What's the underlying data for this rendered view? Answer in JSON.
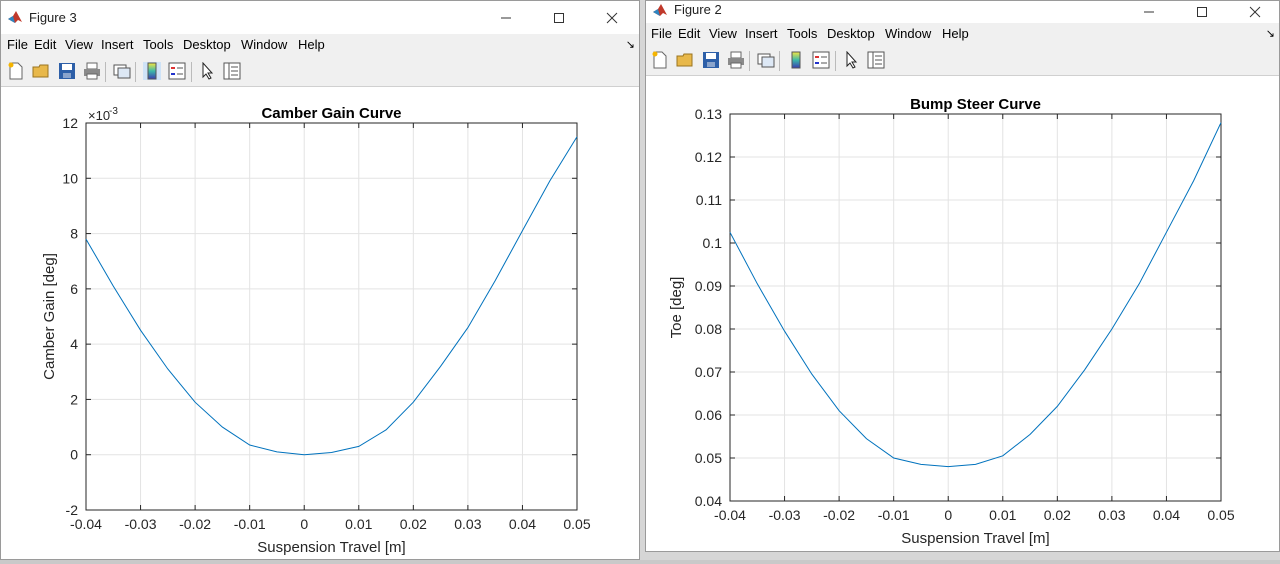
{
  "windows": [
    {
      "id": "fig3",
      "title": "Figure 3",
      "menu": [
        "File",
        "Edit",
        "View",
        "Insert",
        "Tools",
        "Desktop",
        "Window",
        "Help"
      ],
      "toolbar_icons": [
        "new-figure-icon",
        "open-file-icon",
        "save-icon",
        "print-icon",
        "link-plot-icon",
        "insert-colorbar-icon",
        "insert-legend-icon",
        "edit-plot-pointer-icon",
        "property-inspector-icon"
      ],
      "chart_data": {
        "type": "line",
        "title": "Camber Gain Curve",
        "xlabel": "Suspension Travel [m]",
        "ylabel": "Camber Gain [deg]",
        "exponent_label": "×10",
        "exponent_power": "-3",
        "xlim": [
          -0.04,
          0.05
        ],
        "ylim": [
          -2,
          12
        ],
        "xticks": [
          "-0.04",
          "-0.03",
          "-0.02",
          "-0.01",
          "0",
          "0.01",
          "0.02",
          "0.03",
          "0.04",
          "0.05"
        ],
        "yticks": [
          "-2",
          "0",
          "2",
          "4",
          "6",
          "8",
          "10",
          "12"
        ],
        "grid": true,
        "series": [
          {
            "color": "#0072bd",
            "x": [
              -0.04,
              -0.035,
              -0.03,
              -0.025,
              -0.02,
              -0.015,
              -0.01,
              -0.005,
              0,
              0.005,
              0.01,
              0.015,
              0.02,
              0.025,
              0.03,
              0.035,
              0.04,
              0.045,
              0.05
            ],
            "y": [
              7.8,
              6.1,
              4.5,
              3.1,
              1.9,
              1.0,
              0.35,
              0.1,
              0.0,
              0.08,
              0.3,
              0.9,
              1.9,
              3.2,
              4.6,
              6.3,
              8.1,
              9.9,
              11.5
            ]
          }
        ]
      }
    },
    {
      "id": "fig2",
      "title": "Figure 2",
      "menu": [
        "File",
        "Edit",
        "View",
        "Insert",
        "Tools",
        "Desktop",
        "Window",
        "Help"
      ],
      "toolbar_icons": [
        "new-figure-icon",
        "open-file-icon",
        "save-icon",
        "print-icon",
        "link-plot-icon",
        "insert-colorbar-icon",
        "insert-legend-icon",
        "edit-plot-pointer-icon",
        "property-inspector-icon"
      ],
      "chart_data": {
        "type": "line",
        "title": "Bump Steer Curve",
        "xlabel": "Suspension Travel [m]",
        "ylabel": "Toe [deg]",
        "xlim": [
          -0.04,
          0.05
        ],
        "ylim": [
          0.04,
          0.13
        ],
        "xticks": [
          "-0.04",
          "-0.03",
          "-0.02",
          "-0.01",
          "0",
          "0.01",
          "0.02",
          "0.03",
          "0.04",
          "0.05"
        ],
        "yticks": [
          "0.04",
          "0.05",
          "0.06",
          "0.07",
          "0.08",
          "0.09",
          "0.1",
          "0.11",
          "0.12",
          "0.13"
        ],
        "grid": true,
        "series": [
          {
            "color": "#0072bd",
            "x": [
              -0.04,
              -0.035,
              -0.03,
              -0.025,
              -0.02,
              -0.015,
              -0.01,
              -0.005,
              0,
              0.005,
              0.01,
              0.015,
              0.02,
              0.025,
              0.03,
              0.035,
              0.04,
              0.045,
              0.05
            ],
            "y": [
              0.1025,
              0.0905,
              0.0795,
              0.0695,
              0.061,
              0.0545,
              0.05,
              0.0485,
              0.048,
              0.0485,
              0.0505,
              0.0555,
              0.062,
              0.0705,
              0.08,
              0.0905,
              0.1025,
              0.1145,
              0.128
            ]
          }
        ]
      }
    }
  ]
}
